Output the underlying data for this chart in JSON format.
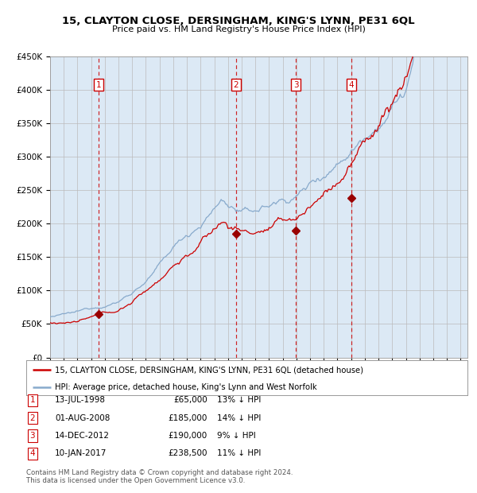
{
  "title": "15, CLAYTON CLOSE, DERSINGHAM, KING'S LYNN, PE31 6QL",
  "subtitle": "Price paid vs. HM Land Registry's House Price Index (HPI)",
  "transactions": [
    {
      "num": 1,
      "date": "13-JUL-1998",
      "price": 65000,
      "pct": "13% ↓ HPI",
      "x_year": 1998.54
    },
    {
      "num": 2,
      "date": "01-AUG-2008",
      "price": 185000,
      "pct": "14% ↓ HPI",
      "x_year": 2008.58
    },
    {
      "num": 3,
      "date": "14-DEC-2012",
      "price": 190000,
      "pct": "9% ↓ HPI",
      "x_year": 2012.96
    },
    {
      "num": 4,
      "date": "10-JAN-2017",
      "price": 238500,
      "pct": "11% ↓ HPI",
      "x_year": 2017.03
    }
  ],
  "legend_red": "15, CLAYTON CLOSE, DERSINGHAM, KING'S LYNN, PE31 6QL (detached house)",
  "legend_blue": "HPI: Average price, detached house, King's Lynn and West Norfolk",
  "footer1": "Contains HM Land Registry data © Crown copyright and database right 2024.",
  "footer2": "This data is licensed under the Open Government Licence v3.0.",
  "ylim": [
    0,
    450000
  ],
  "xlim_start": 1995.0,
  "xlim_end": 2025.5,
  "background_color": "#dce9f5",
  "red_color": "#cc0000",
  "blue_color": "#88aacc",
  "grid_color": "#bbbbbb",
  "vline_color": "#cc0000",
  "marker_color": "#990000",
  "box_edge_color": "#cc0000",
  "yticks": [
    0,
    50000,
    100000,
    150000,
    200000,
    250000,
    300000,
    350000,
    400000,
    450000
  ],
  "ytick_labels": [
    "£0",
    "£50K",
    "£100K",
    "£150K",
    "£200K",
    "£250K",
    "£300K",
    "£350K",
    "£400K",
    "£450K"
  ]
}
